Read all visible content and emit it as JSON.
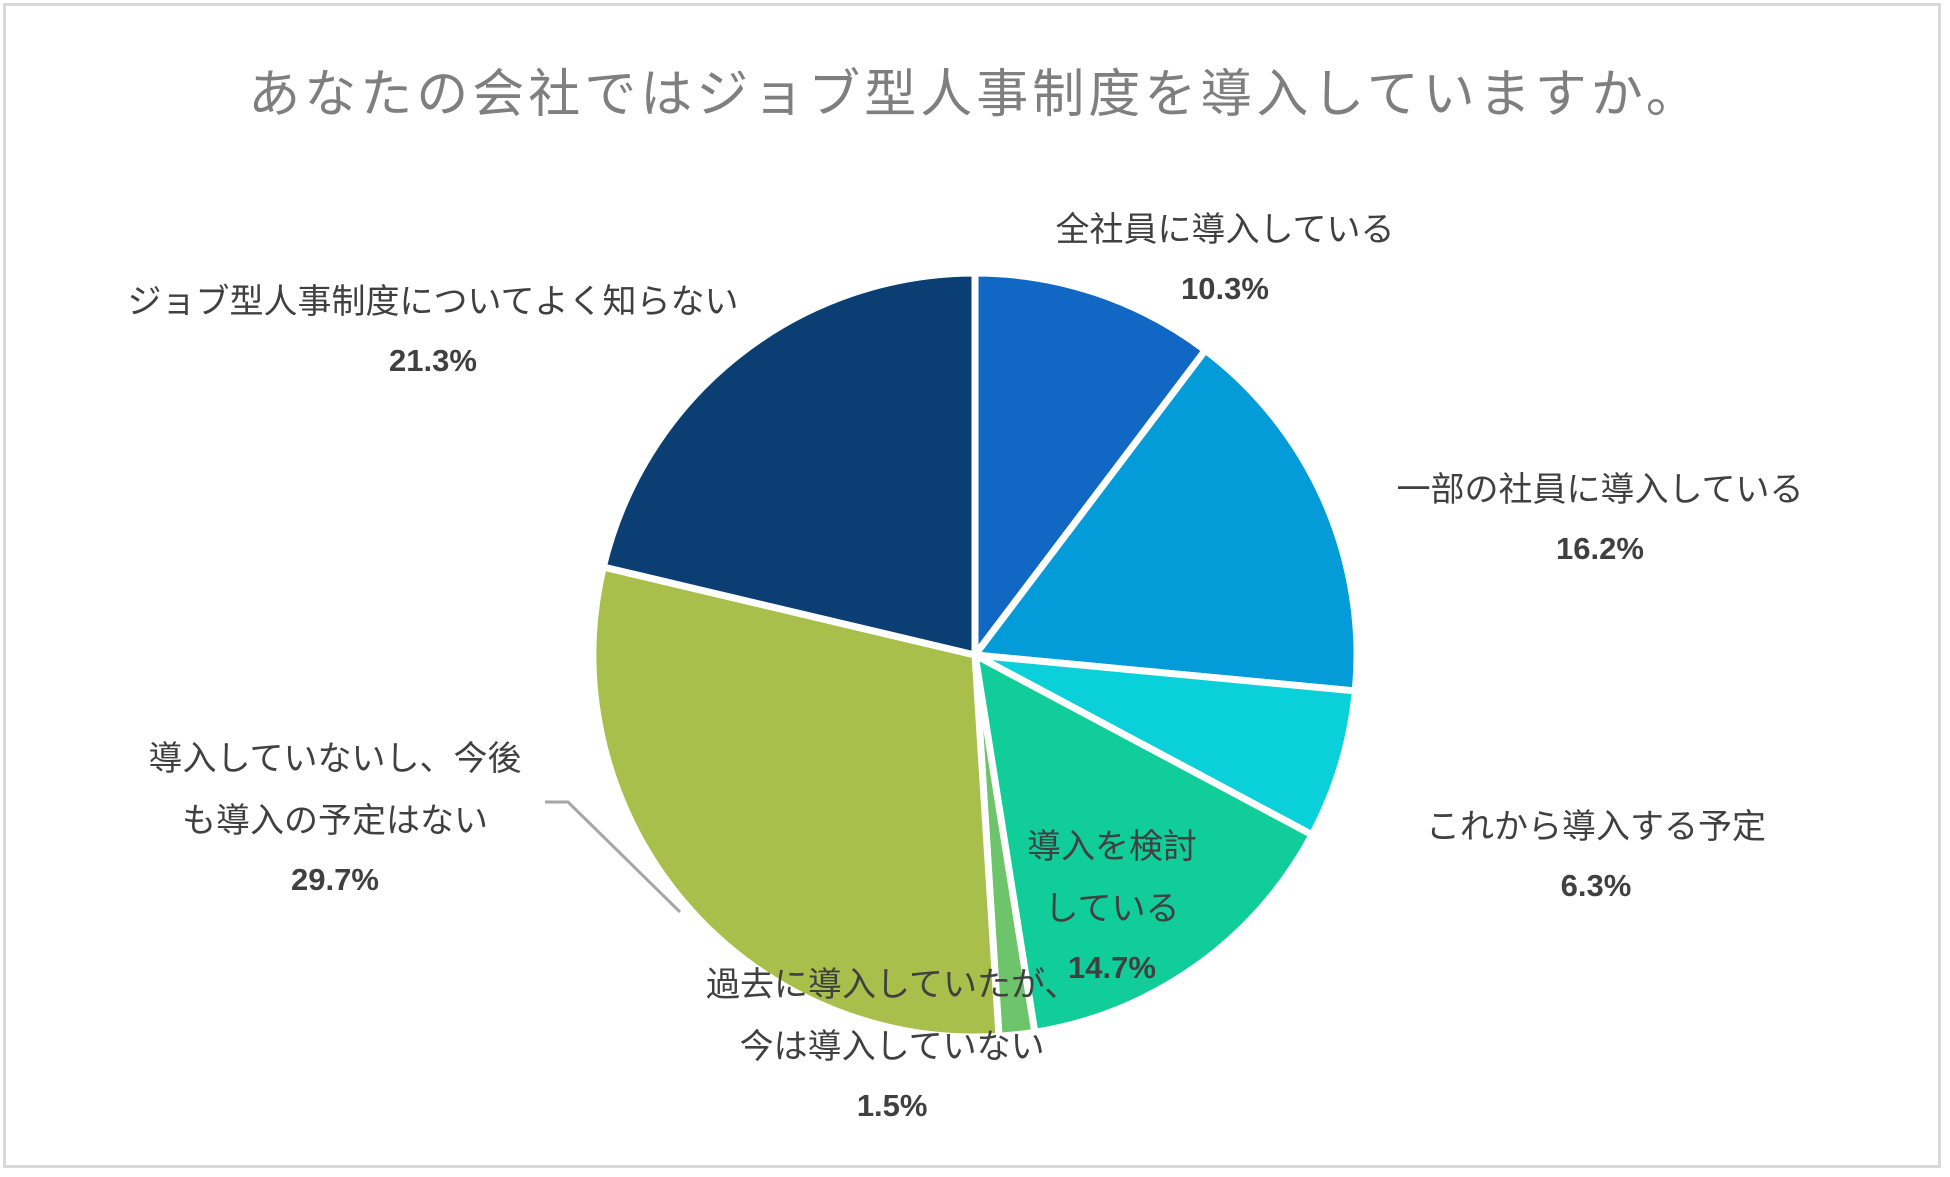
{
  "chart_data": {
    "type": "pie",
    "title": "あなたの会社ではジョブ型人事制度を導入していますか。",
    "start_angle_deg": 0,
    "direction": "clockwise",
    "slices": [
      {
        "label": "全社員に導入している",
        "label_lines": [
          "全社員に導入している"
        ],
        "value": 10.3,
        "value_label": "10.3%",
        "color": "#1068c4"
      },
      {
        "label": "一部の社員に導入している",
        "label_lines": [
          "一部の社員に導入している"
        ],
        "value": 16.2,
        "value_label": "16.2%",
        "color": "#039bd8"
      },
      {
        "label": "これから導入する予定",
        "label_lines": [
          "これから導入する予定"
        ],
        "value": 6.3,
        "value_label": "6.3%",
        "color": "#0ad0da"
      },
      {
        "label": "導入を検討している",
        "label_lines": [
          "導入を検討",
          "している"
        ],
        "value": 14.7,
        "value_label": "14.7%",
        "color": "#10cd9a"
      },
      {
        "label": "過去に導入していたが、今は導入していない",
        "label_lines": [
          "過去に導入していたが、",
          "今は導入していない"
        ],
        "value": 1.5,
        "value_label": "1.5%",
        "color": "#6ec46a"
      },
      {
        "label": "導入していないし、今後も導入の予定はない",
        "label_lines": [
          "導入していないし、今後",
          "も導入の予定はない"
        ],
        "value": 29.7,
        "value_label": "29.7%",
        "color": "#a8c04b"
      },
      {
        "label": "ジョブ型人事制度についてよく知らない",
        "label_lines": [
          "ジョブ型人事制度についてよく知らない"
        ],
        "value": 21.3,
        "value_label": "21.3%",
        "color": "#0b3f74"
      }
    ]
  }
}
